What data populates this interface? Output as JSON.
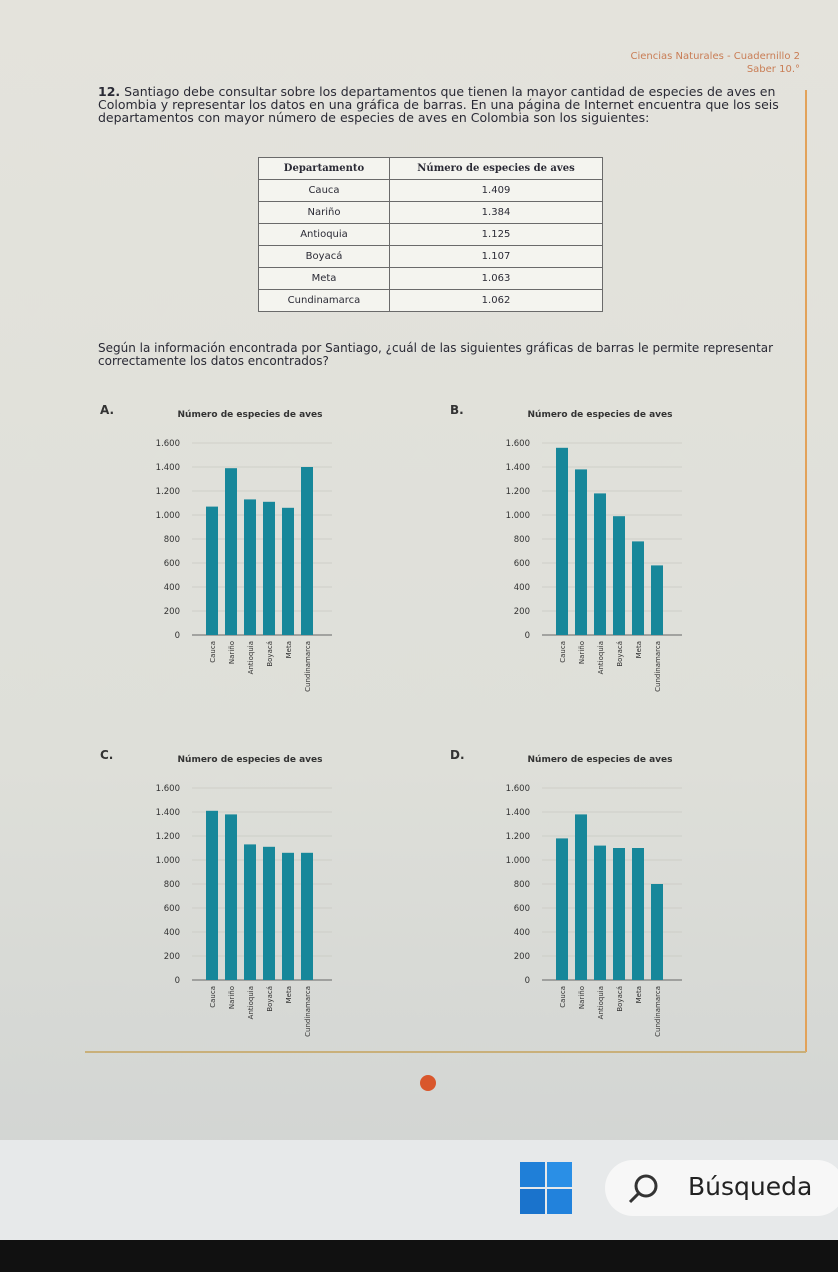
{
  "header": {
    "subject": "Ciencias Naturales - Cuadernillo 2",
    "level": "Saber 10.°"
  },
  "question": {
    "number": "12.",
    "text": "Santiago debe consultar sobre los departamentos que tienen la mayor cantidad de especies de aves en Colombia y representar los datos en una gráfica de barras. En una página de Internet encuentra que los seis departamentos con mayor número de especies de aves en Colombia son los siguientes:"
  },
  "table": {
    "columns": [
      "Departamento",
      "Número de especies de aves"
    ],
    "rows": [
      [
        "Cauca",
        "1.409"
      ],
      [
        "Nariño",
        "1.384"
      ],
      [
        "Antioquia",
        "1.125"
      ],
      [
        "Boyacá",
        "1.107"
      ],
      [
        "Meta",
        "1.063"
      ],
      [
        "Cundinamarca",
        "1.062"
      ]
    ]
  },
  "prompt": "Según la información encontrada por Santiago, ¿cuál de las siguientes gráficas de barras le permite representar correctamente los datos encontrados?",
  "chart_data": [
    {
      "type": "bar",
      "option": "A.",
      "title": "Número de especies de aves",
      "categories": [
        "Cauca",
        "Nariño",
        "Antioquia",
        "Boyacá",
        "Meta",
        "Cundinamarca"
      ],
      "values": [
        1070,
        1390,
        1130,
        1110,
        1060,
        1400
      ],
      "color": "#17879a",
      "ylim": [
        0,
        1600
      ],
      "yticks": [
        0,
        200,
        400,
        600,
        800,
        {
          "value": 1000,
          "label": "1.000"
        },
        {
          "value": 1200,
          "label": "1.200"
        },
        {
          "value": 1400,
          "label": "1.400"
        },
        {
          "value": 1600,
          "label": "1.600"
        }
      ]
    },
    {
      "type": "bar",
      "option": "B.",
      "title": "Número de especies de aves",
      "categories": [
        "Cauca",
        "Nariño",
        "Antioquia",
        "Boyacá",
        "Meta",
        "Cundinamarca"
      ],
      "values": [
        1560,
        1380,
        1180,
        990,
        780,
        580
      ],
      "color": "#17879a",
      "ylim": [
        0,
        1600
      ],
      "yticks": [
        0,
        200,
        400,
        600,
        800,
        {
          "value": 1000,
          "label": "1.000"
        },
        {
          "value": 1200,
          "label": "1.200"
        },
        {
          "value": 1400,
          "label": "1.400"
        },
        {
          "value": 1600,
          "label": "1.600"
        }
      ]
    },
    {
      "type": "bar",
      "option": "C.",
      "title": "Número de especies de aves",
      "categories": [
        "Cauca",
        "Nariño",
        "Antioquia",
        "Boyacá",
        "Meta",
        "Cundinamarca"
      ],
      "values": [
        1410,
        1380,
        1130,
        1110,
        1060,
        1060
      ],
      "color": "#17879a",
      "ylim": [
        0,
        1600
      ],
      "yticks": [
        0,
        200,
        400,
        600,
        800,
        {
          "value": 1000,
          "label": "1.000"
        },
        {
          "value": 1200,
          "label": "1.200"
        },
        {
          "value": 1400,
          "label": "1.400"
        },
        {
          "value": 1600,
          "label": "1.600"
        }
      ]
    },
    {
      "type": "bar",
      "option": "D.",
      "title": "Número de especies de aves",
      "categories": [
        "Cauca",
        "Nariño",
        "Antioquia",
        "Boyacá",
        "Meta",
        "Cundinamarca"
      ],
      "values": [
        1180,
        1380,
        1120,
        1100,
        1100,
        800
      ],
      "color": "#17879a",
      "ylim": [
        0,
        1600
      ],
      "yticks": [
        0,
        200,
        400,
        600,
        800,
        {
          "value": 1000,
          "label": "1.000"
        },
        {
          "value": 1200,
          "label": "1.200"
        },
        {
          "value": 1400,
          "label": "1.400"
        },
        {
          "value": 1600,
          "label": "1.600"
        }
      ]
    }
  ],
  "taskbar": {
    "search": "Búsqueda"
  }
}
